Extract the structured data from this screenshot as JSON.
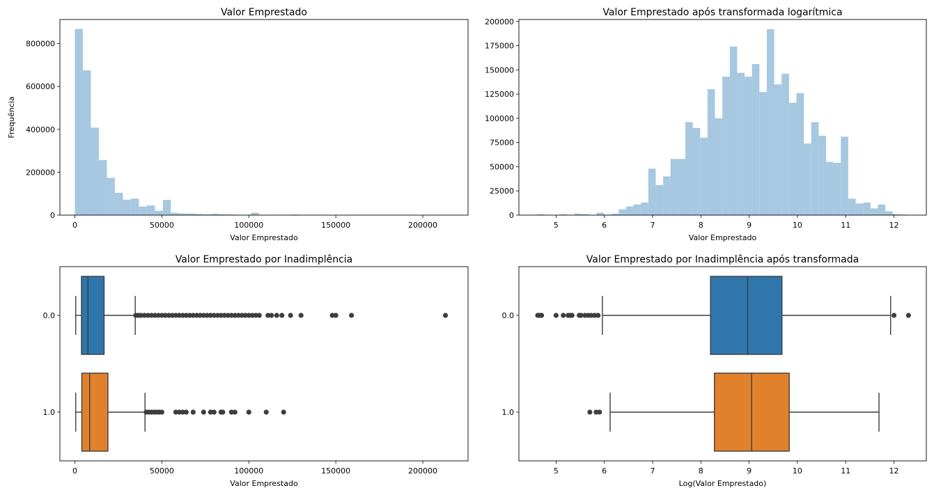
{
  "chart_data": [
    {
      "id": "p1",
      "type": "histogram",
      "title": "Valor Emprestado",
      "xlabel": "Valor Emprestado",
      "ylabel": "Frequência",
      "xlim": [
        -8600,
        226000
      ],
      "ylim": [
        0,
        912000
      ],
      "xticks": [
        0,
        50000,
        100000,
        150000,
        200000
      ],
      "yticks": [
        0,
        200000,
        400000,
        600000,
        800000
      ],
      "bin_start": 0,
      "bin_width": 4600,
      "values": [
        868000,
        675000,
        408000,
        257000,
        174000,
        104000,
        72000,
        77000,
        40000,
        45000,
        20000,
        71000,
        11000,
        8000,
        7000,
        6000,
        3000,
        6000,
        4000,
        3000,
        2000,
        1000,
        11000,
        0,
        1000,
        0,
        0,
        3000,
        0,
        0,
        0,
        0,
        0,
        0,
        1000,
        0,
        0,
        0,
        0,
        0,
        0,
        0,
        0,
        0,
        0,
        0,
        0
      ],
      "color": "#a6c8e0"
    },
    {
      "id": "p2",
      "type": "histogram",
      "title": "Valor Emprestado após transformada logarítmica",
      "xlabel": "Valor Emprestado",
      "ylabel": "",
      "xlim": [
        4.23,
        12.67
      ],
      "ylim": [
        0,
        202000
      ],
      "xticks": [
        5,
        6,
        7,
        8,
        9,
        10,
        11,
        12
      ],
      "yticks": [
        0,
        25000,
        50000,
        75000,
        100000,
        125000,
        150000,
        175000,
        200000
      ],
      "bin_start": 4.61,
      "bin_width": 0.1534,
      "values": [
        1000,
        0,
        0,
        800,
        0,
        1500,
        1000,
        0,
        2500,
        500,
        1500,
        6000,
        9000,
        11000,
        13000,
        48000,
        31000,
        40000,
        58000,
        58000,
        96000,
        90000,
        80000,
        130000,
        100000,
        143000,
        174000,
        147000,
        143000,
        156000,
        127000,
        192000,
        135000,
        146000,
        116000,
        126000,
        74000,
        96000,
        82000,
        55000,
        54000,
        81000,
        17000,
        12000,
        13000,
        7000,
        11000,
        4000,
        1000,
        500
      ],
      "color": "#a6c8e0"
    },
    {
      "id": "p3",
      "type": "boxplot",
      "title": "Valor Emprestado por Inadimplência",
      "xlabel": "Valor Emprestado",
      "xlim": [
        -8600,
        226000
      ],
      "xticks": [
        0,
        50000,
        100000,
        150000,
        200000
      ],
      "categories": [
        "0.0",
        "1.0"
      ],
      "boxes": [
        {
          "category": "0.0",
          "color": "#2f76ad",
          "whislo": 500,
          "q1": 3800,
          "median": 7500,
          "q3": 16800,
          "whishi": 34700,
          "fliers": [
            35000,
            36500,
            38000,
            40000,
            42000,
            44000,
            46000,
            48000,
            50000,
            52000,
            54000,
            56000,
            58000,
            60000,
            62000,
            64000,
            66000,
            68000,
            70000,
            72000,
            74000,
            76000,
            78000,
            80000,
            82000,
            84000,
            86000,
            88000,
            90000,
            92000,
            94000,
            96000,
            98000,
            100000,
            102000,
            104000,
            106000,
            111000,
            113000,
            116000,
            119000,
            124000,
            130000,
            148000,
            150000,
            159000,
            213000
          ]
        },
        {
          "category": "1.0",
          "color": "#e1812c",
          "whislo": 500,
          "q1": 4000,
          "median": 8500,
          "q3": 19000,
          "whishi": 40300,
          "fliers": [
            41000,
            42500,
            44000,
            45500,
            47000,
            48500,
            50000,
            58000,
            60000,
            62000,
            64000,
            68000,
            74000,
            78000,
            80000,
            84000,
            85000,
            90000,
            92000,
            100000,
            110000,
            120000
          ]
        }
      ]
    },
    {
      "id": "p4",
      "type": "boxplot",
      "title": "Valor Emprestado por Inadimplência após transformada",
      "xlabel": "Log(Valor Emprestado)",
      "xlim": [
        4.23,
        12.67
      ],
      "xticks": [
        5,
        6,
        7,
        8,
        9,
        10,
        11,
        12
      ],
      "categories": [
        "0.0",
        "1.0"
      ],
      "boxes": [
        {
          "category": "0.0",
          "color": "#2f76ad",
          "whislo": 5.96,
          "q1": 8.2,
          "median": 8.97,
          "q3": 9.68,
          "whishi": 11.93,
          "fliers": [
            4.62,
            4.66,
            4.7,
            5.0,
            5.15,
            5.25,
            5.3,
            5.33,
            5.48,
            5.52,
            5.6,
            5.67,
            5.73,
            5.8,
            5.87,
            12.0,
            12.3
          ]
        },
        {
          "category": "1.0",
          "color": "#e1812c",
          "whislo": 6.12,
          "q1": 8.28,
          "median": 9.05,
          "q3": 9.83,
          "whishi": 11.69,
          "fliers": [
            5.7,
            5.83,
            5.9
          ]
        }
      ]
    }
  ]
}
